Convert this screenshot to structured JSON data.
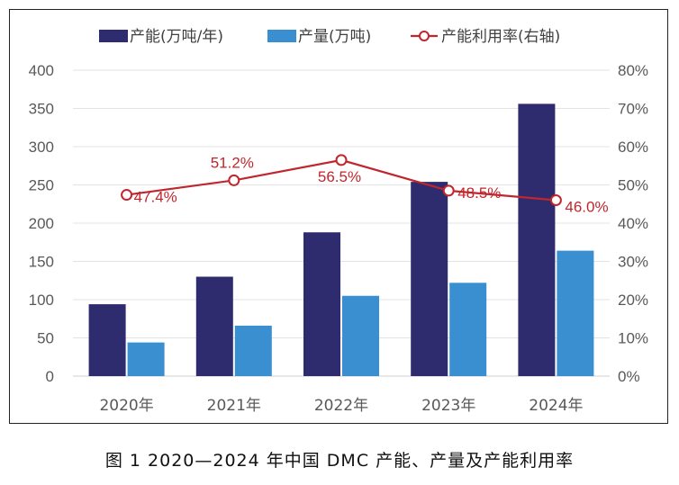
{
  "caption": "图 1  2020—2024 年中国 DMC 产能、产量及产能利用率",
  "chart_data": {
    "type": "bar",
    "categories": [
      "2020年",
      "2021年",
      "2022年",
      "2023年",
      "2024年"
    ],
    "series": [
      {
        "name": "产能(万吨/年)",
        "type": "bar",
        "axis": "left",
        "color": "#2e2c6e",
        "values": [
          94,
          130,
          188,
          254,
          356
        ]
      },
      {
        "name": "产量(万吨)",
        "type": "bar",
        "axis": "left",
        "color": "#3a8fd0",
        "values": [
          44,
          66,
          105,
          122,
          164
        ]
      },
      {
        "name": "产能利用率(右轴)",
        "type": "line",
        "axis": "right",
        "color": "#c0262d",
        "values": [
          47.4,
          51.2,
          56.5,
          48.5,
          46.0
        ],
        "labels": [
          "47.4%",
          "51.2%",
          "56.5%",
          "48.5%",
          "46.0%"
        ]
      }
    ],
    "left_axis": {
      "min": 0,
      "max": 400,
      "ticks": [
        "0",
        "50",
        "100",
        "150",
        "200",
        "250",
        "300",
        "350",
        "400"
      ]
    },
    "right_axis": {
      "min": 0,
      "max": 80,
      "ticks": [
        "0%",
        "10%",
        "20%",
        "30%",
        "40%",
        "50%",
        "60%",
        "70%",
        "80%"
      ]
    },
    "grid": true,
    "legend_position": "top"
  }
}
